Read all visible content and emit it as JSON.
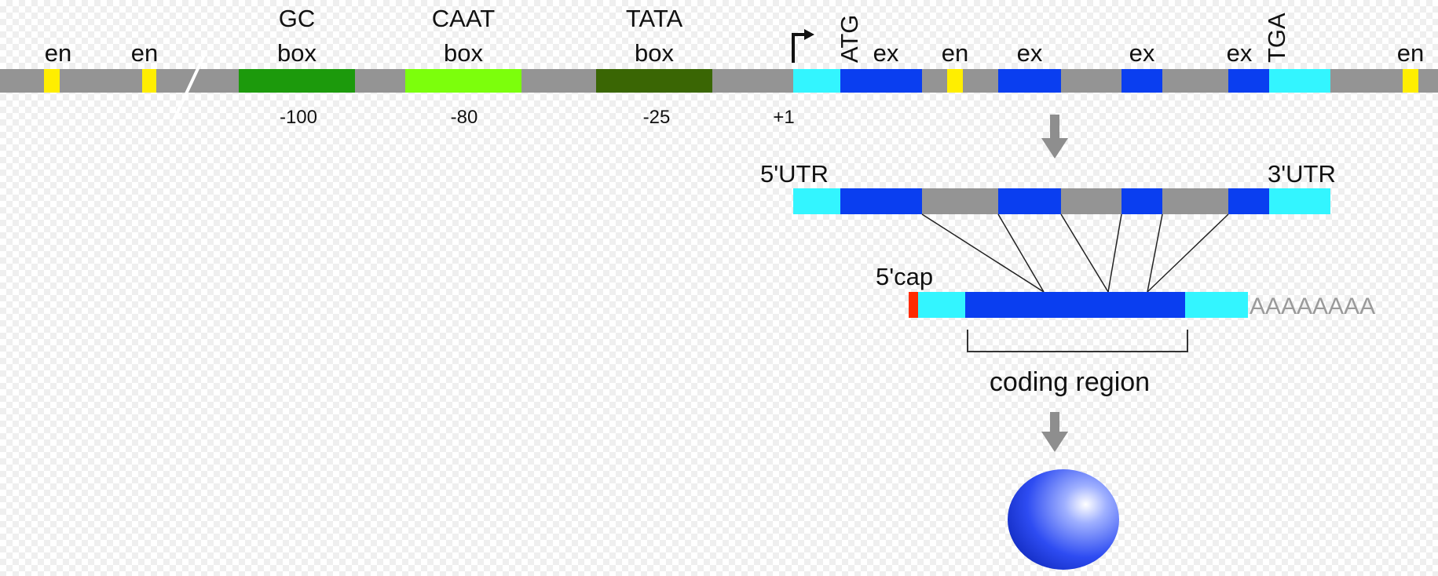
{
  "colors": {
    "backbone": "#949494",
    "enhancer": "#ffee00",
    "gc_box": "#1c9a0c",
    "caat_box": "#7cff0c",
    "tata_box": "#3a6604",
    "utr": "#33f5ff",
    "exon": "#0a3ef0",
    "cap": "#ff2a00",
    "arrow": "#8e8e8e",
    "protein": "#2e4cf2"
  },
  "gene": {
    "enhancer_labels": [
      "en",
      "en",
      "en",
      "en"
    ],
    "gc_box": {
      "line1": "GC",
      "line2": "box",
      "position": "-100"
    },
    "caat_box": {
      "line1": "CAAT",
      "line2": "box",
      "position": "-80"
    },
    "tata_box": {
      "line1": "TATA",
      "line2": "box",
      "position": "-25"
    },
    "start_site": "+1",
    "start_codon": "ATG",
    "stop_codon": "TGA",
    "exon_labels": [
      "ex",
      "ex",
      "ex",
      "ex"
    ]
  },
  "pre_mrna": {
    "utr5_label": "5'UTR",
    "utr3_label": "3'UTR"
  },
  "mrna": {
    "cap_label": "5'cap",
    "poly_a": "AAAAAAAA",
    "coding_region_label": "coding region"
  }
}
